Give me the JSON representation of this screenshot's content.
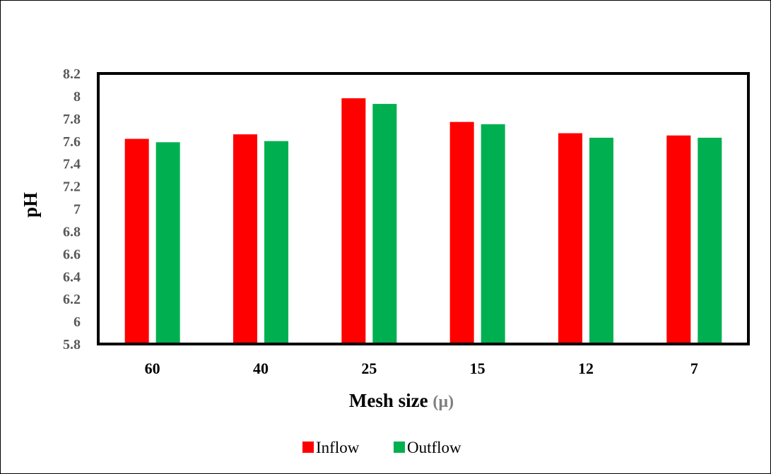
{
  "chart_data": {
    "type": "bar",
    "title": "",
    "xlabel_main": "Mesh size",
    "xlabel_unit": "(µ)",
    "ylabel": "pH",
    "categories": [
      "60",
      "40",
      "25",
      "15",
      "12",
      "7"
    ],
    "series": [
      {
        "name": "Inflow",
        "color": "#ff0000",
        "values": [
          7.62,
          7.66,
          7.98,
          7.77,
          7.67,
          7.65
        ]
      },
      {
        "name": "Outflow",
        "color": "#00b050",
        "values": [
          7.59,
          7.6,
          7.93,
          7.75,
          7.63,
          7.63
        ]
      }
    ],
    "ylim": [
      5.8,
      8.2
    ],
    "yticks": [
      "5.8",
      "6",
      "6.2",
      "6.4",
      "6.6",
      "6.8",
      "7",
      "7.2",
      "7.4",
      "7.6",
      "7.8",
      "8",
      "8.2"
    ],
    "grid": false,
    "legend_position": "bottom-center",
    "colors": {
      "axis_unit_label": "#7f7f7f",
      "plot_border": "#000000"
    }
  }
}
